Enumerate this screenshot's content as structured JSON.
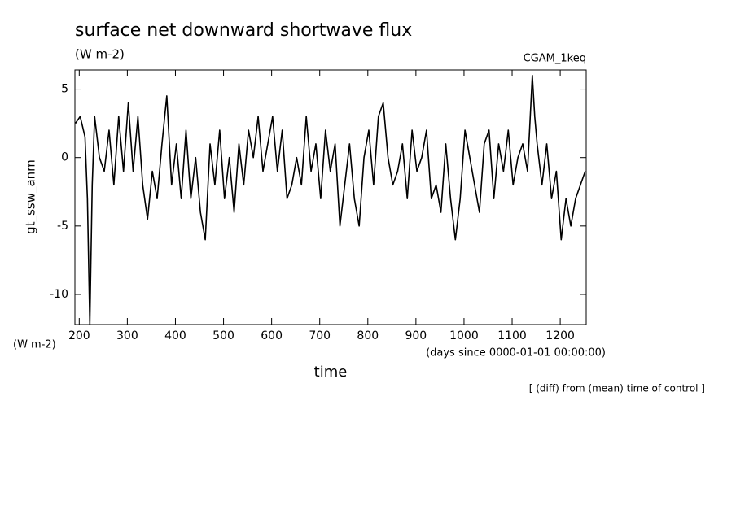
{
  "chart_data": {
    "type": "line",
    "title": "surface net downward shortwave flux",
    "subtitle": "(W m-2)",
    "annotation_right": "CGAM_1keq",
    "y_label": "gt_ssw_anm",
    "y_units": "(W m-2)",
    "x_label": "time",
    "x_units": "(days since 0000-01-01 00:00:00)",
    "note": "[ (diff) from (mean) time of control ]",
    "color": "#000000",
    "xlim": [
      191,
      1254
    ],
    "ylim": [
      -12.2,
      6.4
    ],
    "xticks": [
      200,
      300,
      400,
      500,
      600,
      700,
      800,
      900,
      1000,
      1100,
      1200
    ],
    "yticks": [
      -10,
      -5,
      0,
      5
    ],
    "x": [
      192,
      202,
      212,
      217,
      222,
      227,
      232,
      242,
      252,
      262,
      272,
      282,
      292,
      302,
      312,
      322,
      332,
      342,
      352,
      362,
      372,
      382,
      392,
      402,
      412,
      422,
      432,
      442,
      452,
      462,
      472,
      482,
      492,
      502,
      512,
      522,
      532,
      542,
      552,
      562,
      572,
      582,
      592,
      602,
      612,
      622,
      632,
      642,
      652,
      662,
      672,
      682,
      692,
      702,
      712,
      722,
      732,
      742,
      752,
      762,
      772,
      782,
      792,
      802,
      812,
      822,
      832,
      842,
      852,
      862,
      872,
      882,
      892,
      902,
      912,
      922,
      932,
      942,
      952,
      962,
      972,
      982,
      992,
      1002,
      1012,
      1022,
      1032,
      1042,
      1052,
      1062,
      1072,
      1082,
      1092,
      1102,
      1112,
      1122,
      1132,
      1142,
      1147,
      1152,
      1162,
      1172,
      1182,
      1192,
      1202,
      1212,
      1222,
      1232,
      1242,
      1252
    ],
    "values": [
      2.5,
      3,
      1.5,
      -3,
      -12.2,
      -2,
      3,
      0,
      -1,
      2,
      -2,
      3,
      -1,
      4,
      -1,
      3,
      -2,
      -4.5,
      -1,
      -3,
      1,
      4.5,
      -2,
      1,
      -3,
      2,
      -3,
      0,
      -4,
      -6,
      1,
      -2,
      2,
      -3,
      0,
      -4,
      1,
      -2,
      2,
      0,
      3,
      -1,
      1,
      3,
      -1,
      2,
      -3,
      -2,
      0,
      -2,
      3,
      -1,
      1,
      -3,
      2,
      -1,
      1,
      -5,
      -2,
      1,
      -3,
      -5,
      0,
      2,
      -2,
      3,
      4,
      0,
      -2,
      -1,
      1,
      -3,
      2,
      -1,
      0,
      2,
      -3,
      -2,
      -4,
      1,
      -3,
      -6,
      -3,
      2,
      0,
      -2,
      -4,
      1,
      2,
      -3,
      1,
      -1,
      2,
      -2,
      0,
      1,
      -1,
      6,
      3,
      1,
      -2,
      1,
      -3,
      -1,
      -6,
      -3,
      -5,
      -3,
      -2,
      -1
    ]
  }
}
